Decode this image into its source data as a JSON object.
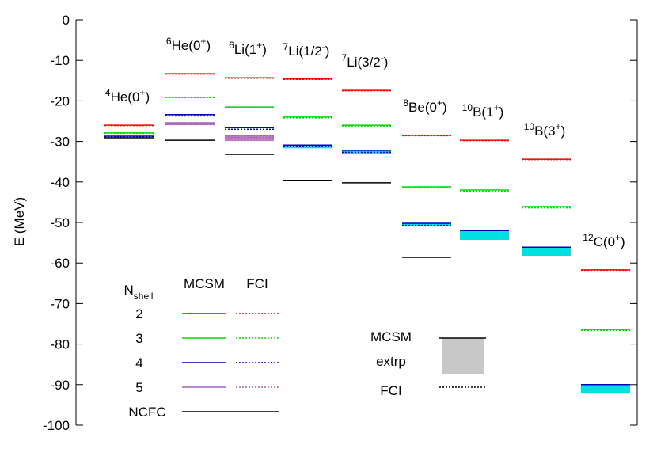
{
  "chart_data": {
    "type": "level",
    "ylabel": "E (MeV)",
    "ylim": [
      -100,
      0
    ],
    "yticks": [
      0,
      -10,
      -20,
      -30,
      -40,
      -50,
      -60,
      -70,
      -80,
      -90,
      -100
    ],
    "nuclei": [
      {
        "label": [
          {
            "text": "4",
            "sup": true
          },
          {
            "text": "He(0"
          },
          {
            "text": "+",
            "sup": true
          },
          {
            "text": ")"
          }
        ]
      },
      {
        "label": [
          {
            "text": "6",
            "sup": true
          },
          {
            "text": "He(0"
          },
          {
            "text": "+",
            "sup": true
          },
          {
            "text": ")"
          }
        ]
      },
      {
        "label": [
          {
            "text": "6",
            "sup": true
          },
          {
            "text": "Li(1"
          },
          {
            "text": "+",
            "sup": true
          },
          {
            "text": ")"
          }
        ]
      },
      {
        "label": [
          {
            "text": "7",
            "sup": true
          },
          {
            "text": "Li(1/2"
          },
          {
            "text": "-",
            "sup": true
          },
          {
            "text": ")"
          }
        ]
      },
      {
        "label": [
          {
            "text": "7",
            "sup": true
          },
          {
            "text": "Li(3/2"
          },
          {
            "text": "-",
            "sup": true
          },
          {
            "text": ")"
          }
        ]
      },
      {
        "label": [
          {
            "text": "8",
            "sup": true
          },
          {
            "text": "Be(0"
          },
          {
            "text": "+",
            "sup": true
          },
          {
            "text": ")"
          }
        ]
      },
      {
        "label": [
          {
            "text": "10",
            "sup": true
          },
          {
            "text": "B(1"
          },
          {
            "text": "+",
            "sup": true
          },
          {
            "text": ")"
          }
        ]
      },
      {
        "label": [
          {
            "text": "10",
            "sup": true
          },
          {
            "text": "B(3"
          },
          {
            "text": "+",
            "sup": true
          },
          {
            "text": ")"
          }
        ]
      },
      {
        "label": [
          {
            "text": "12",
            "sup": true
          },
          {
            "text": "C(0"
          },
          {
            "text": "+",
            "sup": true
          },
          {
            "text": ")"
          }
        ]
      }
    ],
    "legend_title": {
      "text": "N",
      "sub": "shell"
    },
    "methods": [
      "MCSM",
      "FCI"
    ],
    "series": [
      {
        "name": "2",
        "color": "#ff0000",
        "mcsm": [
          -26.0,
          -13.3,
          -14.3,
          -14.6,
          -17.4,
          -28.5,
          -29.7,
          -34.4,
          -61.7
        ],
        "fci": [
          -26.1,
          -13.4,
          -14.4,
          -14.7,
          -17.5,
          -28.6,
          -29.8,
          -34.5,
          -61.8
        ]
      },
      {
        "name": "3",
        "color": "#00dd00",
        "mcsm": [
          -27.9,
          -19.1,
          -21.5,
          -24.0,
          -26.0,
          -41.2,
          -42.0,
          -46.1,
          -76.4
        ],
        "fci": [
          -28.0,
          -19.2,
          -21.7,
          -24.2,
          -26.2,
          -41.4,
          -42.3,
          -46.4,
          -76.6
        ]
      },
      {
        "name": "4",
        "color": "#0000c0",
        "mcsm": [
          -28.7,
          -23.4,
          -26.6,
          -30.9,
          -32.2,
          -50.2,
          -52.0,
          -56.1,
          -90.0
        ],
        "fci": [
          -28.8,
          -23.7,
          -27.0,
          -31.3,
          -32.7,
          -50.7,
          null,
          null,
          null
        ]
      },
      {
        "name": "5",
        "color": "#a060c0",
        "mcsm": [
          null,
          -25.4,
          -28.5,
          null,
          null,
          null,
          null,
          null,
          null
        ],
        "fci": [
          null,
          -25.8,
          -29.0,
          null,
          null,
          null,
          null,
          null,
          null
        ]
      },
      {
        "name": "NCFC",
        "color": "#000000",
        "values": [
          -29.1,
          -29.7,
          -33.2,
          -39.6,
          -40.2,
          -58.6,
          null,
          null,
          null
        ]
      }
    ],
    "extrapolation": {
      "values": [
        null,
        -26.0,
        -29.9,
        -31.7,
        -33.0,
        -51.0,
        -54.3,
        -58.2,
        -92.2
      ],
      "colors": [
        null,
        "#c080c0",
        "#c080c0",
        "#00e0e0",
        "#00e0e0",
        "#00e0e0",
        "#00e0e0",
        "#00e0e0",
        "#00e0e0"
      ]
    },
    "extrp_legend": {
      "labels": [
        "MCSM",
        "extrp",
        "FCI"
      ],
      "color": "#c8c8c8"
    }
  }
}
